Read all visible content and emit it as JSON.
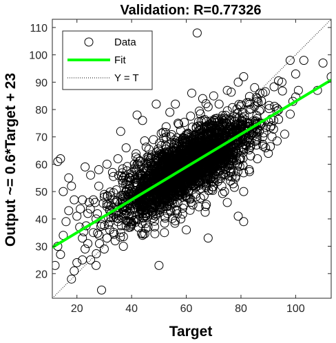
{
  "chart_data": {
    "type": "scatter",
    "title": "Validation: R=0.77326",
    "xlabel": "Target",
    "ylabel": "Output ~= 0.6*Target + 23",
    "xlim": [
      11,
      113
    ],
    "ylim": [
      11,
      113
    ],
    "xticks": [
      20,
      40,
      60,
      80,
      100
    ],
    "yticks": [
      20,
      30,
      40,
      50,
      60,
      70,
      80,
      90,
      100,
      110
    ],
    "grid": false,
    "legend_position": "top-left",
    "legend": [
      "Data",
      "Fit",
      "Y = T"
    ],
    "fit": {
      "slope": 0.6,
      "intercept": 23
    },
    "colors": {
      "fit": "#00ff00",
      "data": "#000000",
      "identity": "#000000"
    },
    "series": [
      {
        "name": "Data",
        "points": [
          [
            64,
            108
          ],
          [
            103,
            98
          ],
          [
            110,
            97
          ],
          [
            98,
            98
          ],
          [
            100,
            93
          ],
          [
            113,
            92
          ],
          [
            95,
            90
          ],
          [
            101,
            87
          ],
          [
            85,
            88
          ],
          [
            88,
            86
          ],
          [
            108,
            87
          ],
          [
            99,
            83
          ],
          [
            92,
            76
          ],
          [
            96,
            71
          ],
          [
            90,
            64
          ],
          [
            86,
            84
          ],
          [
            83,
            80
          ],
          [
            79,
            90
          ],
          [
            81,
            92
          ],
          [
            75,
            87
          ],
          [
            70,
            85
          ],
          [
            78,
            77
          ],
          [
            84,
            73
          ],
          [
            88,
            70
          ],
          [
            89,
            66
          ],
          [
            86,
            62
          ],
          [
            83,
            58
          ],
          [
            78,
            55
          ],
          [
            73,
            52
          ],
          [
            81,
            50
          ],
          [
            75,
            46
          ],
          [
            79,
            41
          ],
          [
            81,
            39
          ],
          [
            68,
            33
          ],
          [
            60,
            36
          ],
          [
            58,
            40
          ],
          [
            50,
            23
          ],
          [
            52,
            35
          ],
          [
            44,
            34
          ],
          [
            46,
            37
          ],
          [
            40,
            38
          ],
          [
            38,
            43
          ],
          [
            36,
            35
          ],
          [
            34,
            32
          ],
          [
            30,
            29
          ],
          [
            29,
            14
          ],
          [
            32,
            36
          ],
          [
            25,
            25
          ],
          [
            27,
            23
          ],
          [
            22,
            25
          ],
          [
            20,
            24
          ],
          [
            18,
            18
          ],
          [
            19,
            21
          ],
          [
            12,
            23
          ],
          [
            14,
            27
          ],
          [
            13,
            30
          ],
          [
            15,
            34
          ],
          [
            16,
            39
          ],
          [
            17,
            43
          ],
          [
            20,
            41
          ],
          [
            22,
            47
          ],
          [
            18,
            52
          ],
          [
            15,
            50
          ],
          [
            13,
            61
          ],
          [
            14,
            62
          ],
          [
            23,
            59
          ],
          [
            25,
            56
          ],
          [
            28,
            52
          ],
          [
            30,
            48
          ],
          [
            32,
            43
          ],
          [
            34,
            46
          ],
          [
            27,
            40
          ],
          [
            29,
            38
          ],
          [
            31,
            33
          ],
          [
            24,
            31
          ],
          [
            26,
            35
          ],
          [
            21,
            37
          ],
          [
            23,
            29
          ],
          [
            35,
            62
          ],
          [
            38,
            66
          ],
          [
            36,
            72
          ],
          [
            42,
            78
          ],
          [
            44,
            76
          ],
          [
            49,
            82
          ],
          [
            48,
            69
          ],
          [
            54,
            79
          ],
          [
            56,
            82
          ],
          [
            57,
            75
          ],
          [
            62,
            86
          ],
          [
            66,
            84
          ],
          [
            68,
            81
          ],
          [
            72,
            82
          ],
          [
            40,
            57
          ],
          [
            41,
            60
          ],
          [
            42,
            53
          ],
          [
            43,
            47
          ],
          [
            45,
            45
          ],
          [
            47,
            43
          ],
          [
            39,
            50
          ],
          [
            37,
            55
          ],
          [
            33,
            57
          ],
          [
            31,
            60
          ],
          [
            28,
            58
          ],
          [
            26,
            47
          ],
          [
            24,
            42
          ],
          [
            19,
            47
          ],
          [
            17,
            55
          ],
          [
            22,
            33
          ],
          [
            35,
            39
          ],
          [
            37,
            30
          ]
        ],
        "cloud": {
          "count": 2600,
          "center": [
            60,
            59
          ],
          "sd": [
            12,
            9
          ],
          "correlation": 0.77,
          "seed": 77326
        }
      },
      {
        "name": "Fit"
      },
      {
        "name": "Y = T"
      }
    ]
  }
}
